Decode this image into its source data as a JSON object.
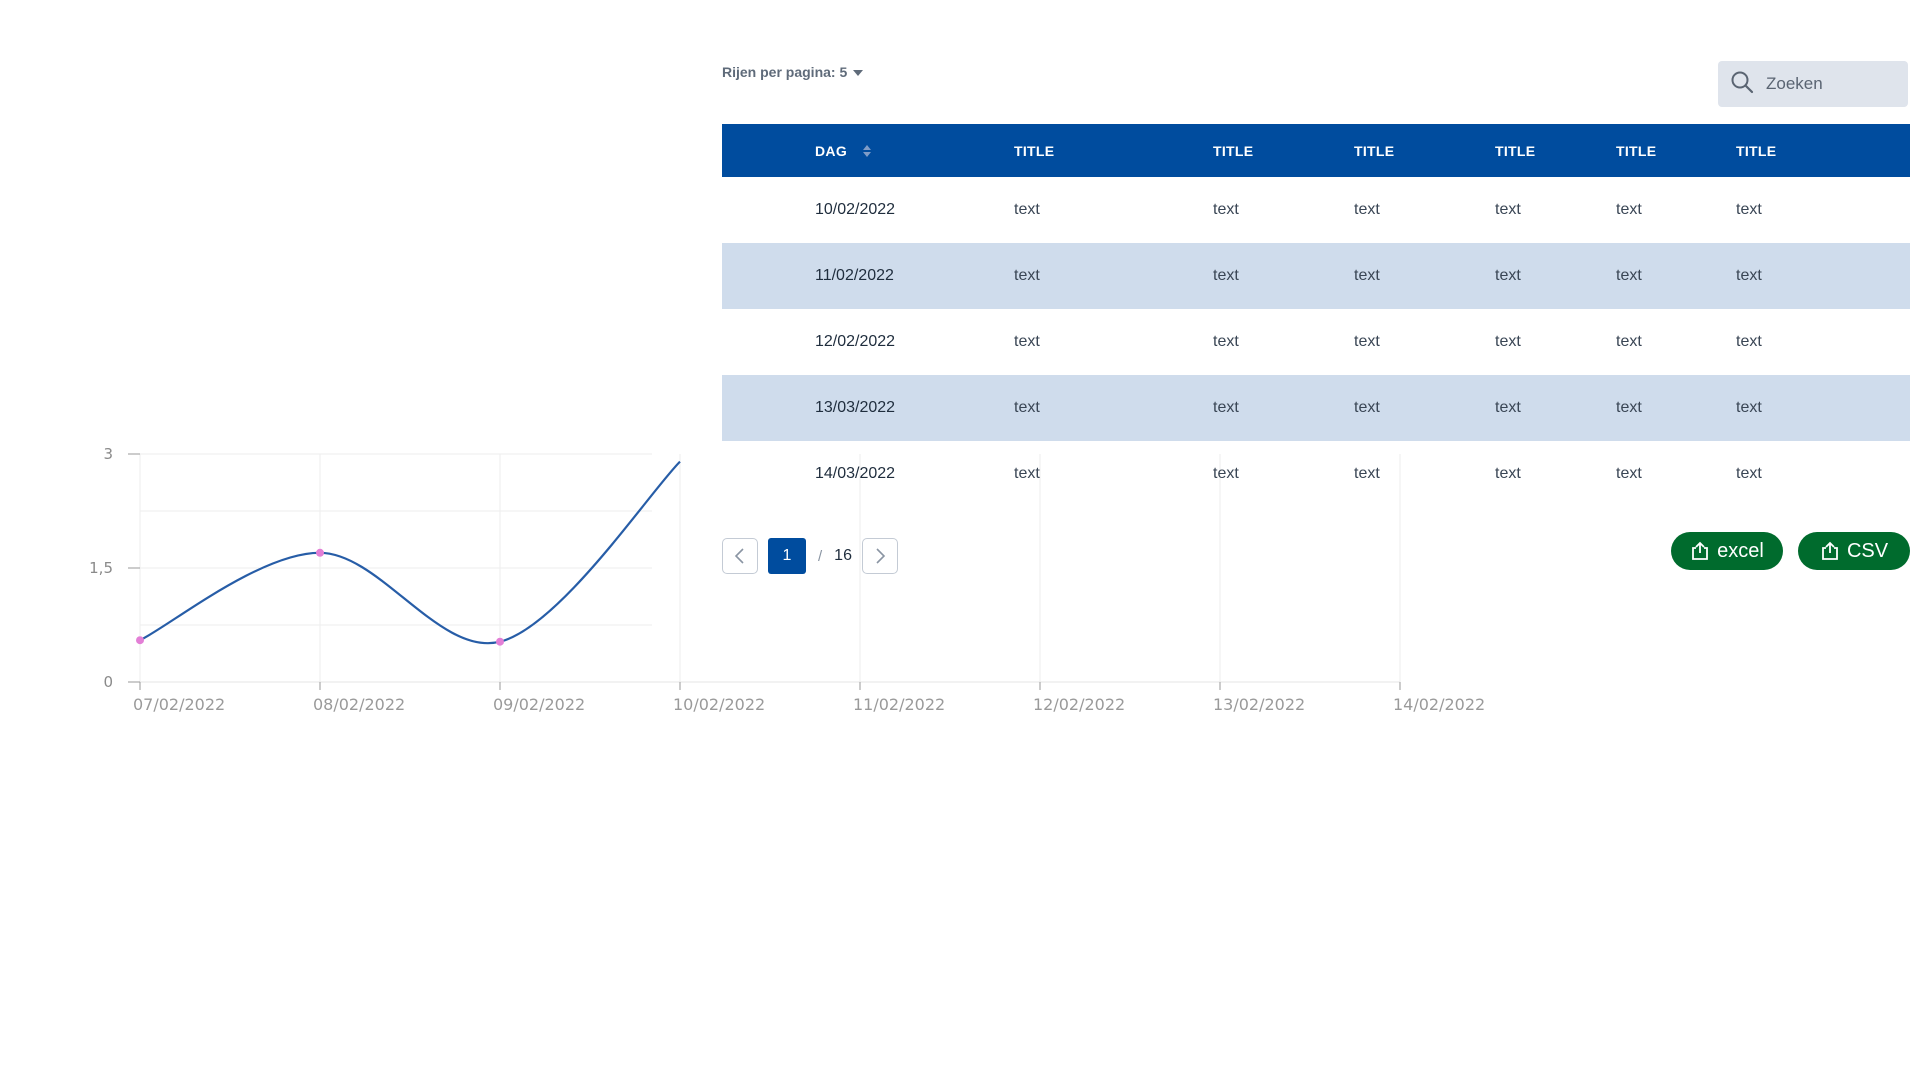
{
  "chart_data": {
    "type": "line",
    "y_ticks": [
      "3",
      "1,5",
      "0"
    ],
    "ylim": [
      0,
      3
    ],
    "x_ticks": [
      "07/02/2022",
      "08/02/2022",
      "09/02/2022",
      "10/02/2022",
      "11/02/2022",
      "12/02/2022",
      "13/02/2022",
      "14/02/2022"
    ],
    "series": [
      {
        "x": [
          "07/02/2022",
          "08/02/2022",
          "09/02/2022",
          "10/02/2022"
        ],
        "values": [
          0.55,
          1.7,
          0.53,
          2.9
        ],
        "marker_color": "#e37fd6",
        "line_color": "#275da7"
      }
    ],
    "grid": true
  },
  "table": {
    "rows_per_page_label": "Rijen per pagina: 5",
    "search_placeholder": "Zoeken",
    "headers": [
      "DAG",
      "TITLE",
      "TITLE",
      "TITLE",
      "TITLE",
      "TITLE",
      "TITLE"
    ],
    "rows": [
      [
        "10/02/2022",
        "text",
        "text",
        "text",
        "text",
        "text",
        "text"
      ],
      [
        "11/02/2022",
        "text",
        "text",
        "text",
        "text",
        "text",
        "text"
      ],
      [
        "12/02/2022",
        "text",
        "text",
        "text",
        "text",
        "text",
        "text"
      ],
      [
        "13/03/2022",
        "text",
        "text",
        "text",
        "text",
        "text",
        "text"
      ],
      [
        "14/03/2022",
        "text",
        "text",
        "text",
        "text",
        "text",
        "text"
      ]
    ]
  },
  "pagination": {
    "current": "1",
    "separator": "/",
    "total": "16"
  },
  "export": {
    "excel_label": "excel",
    "csv_label": "CSV"
  },
  "colors": {
    "header_bg": "#004c9e",
    "stripe_bg": "#cfdcec",
    "export_bg": "#006b2d"
  }
}
